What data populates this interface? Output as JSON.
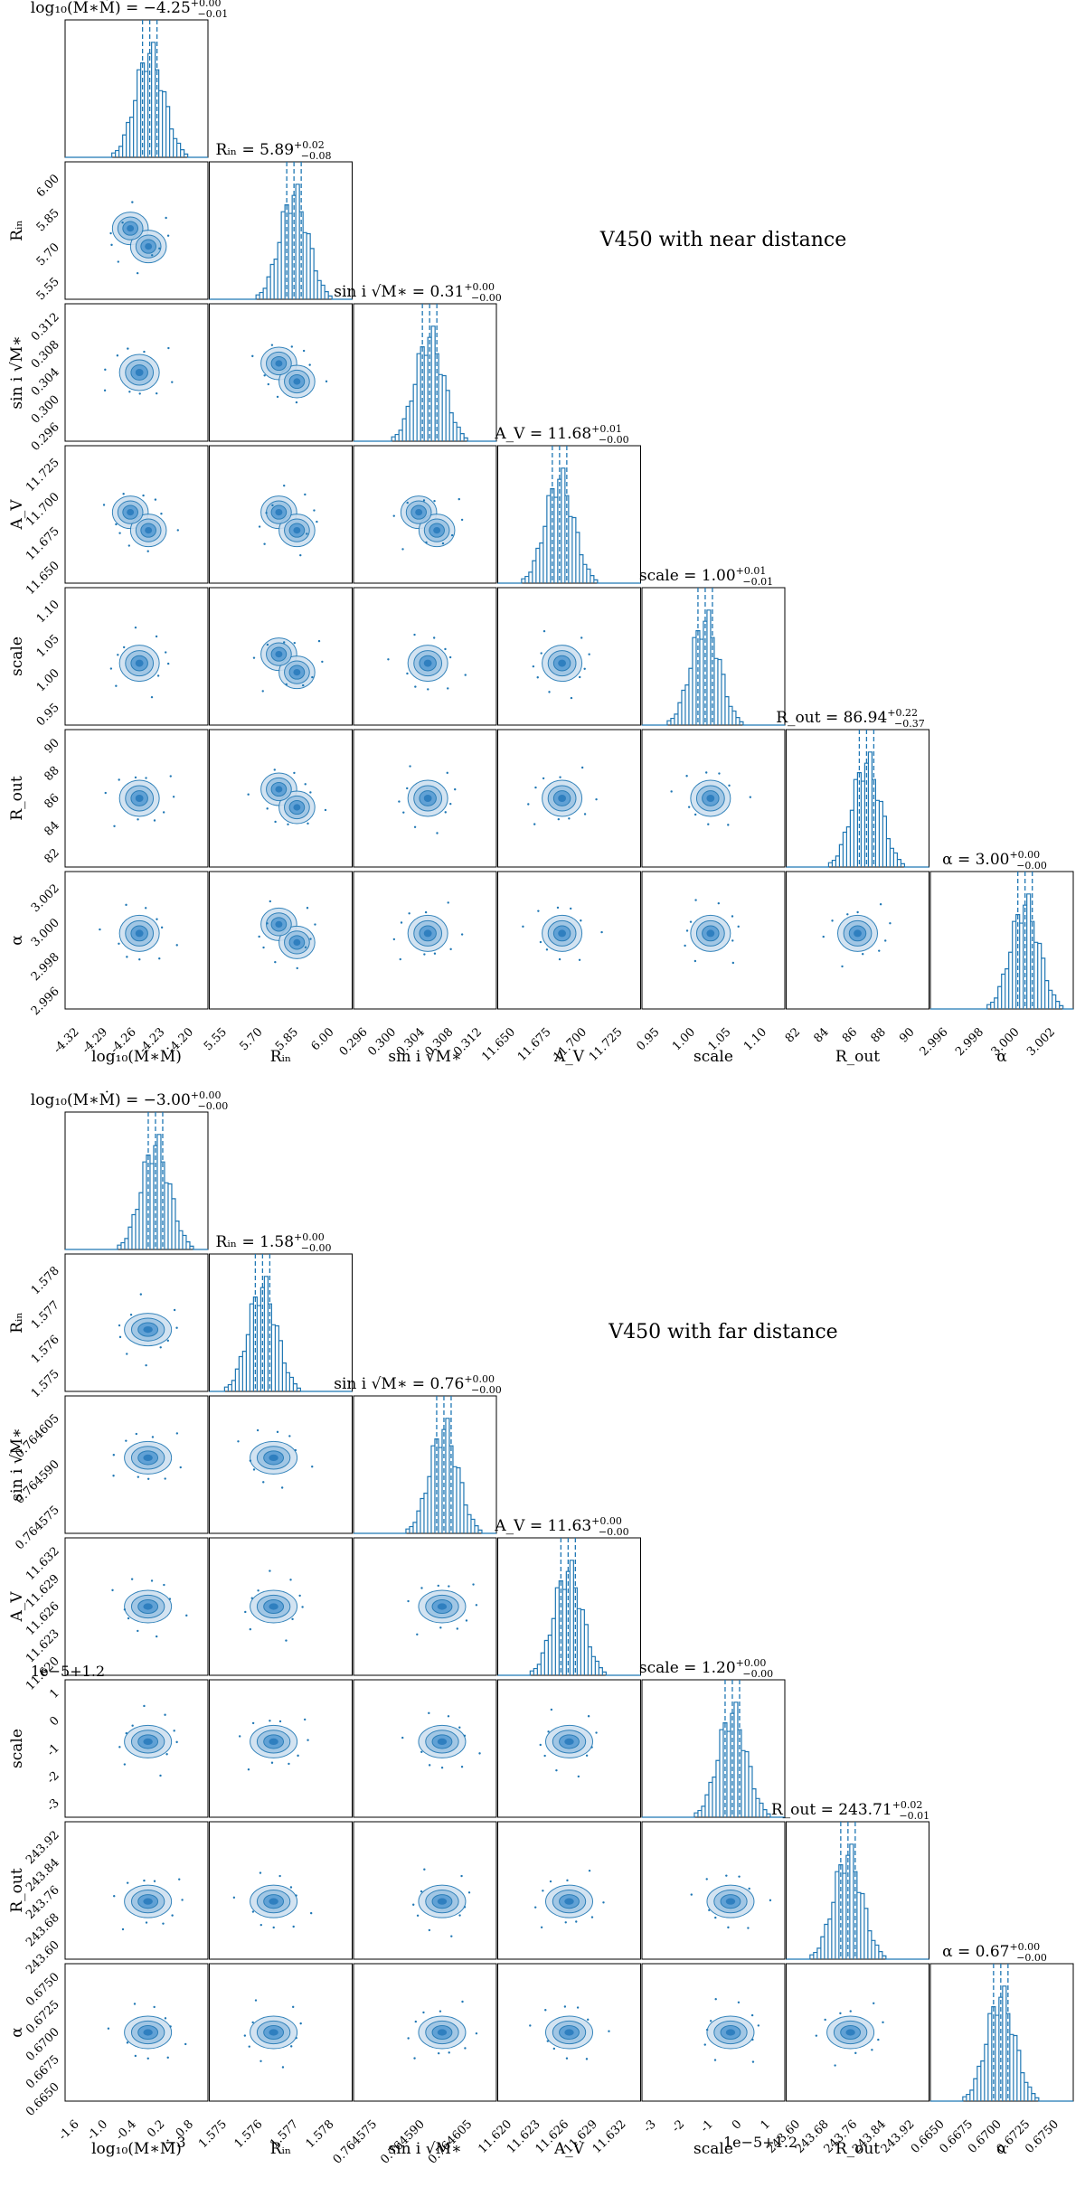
{
  "colors": {
    "accent": "#1f77b4",
    "fill": "#9cc3e3",
    "core": "#2f7fbf",
    "axis": "#000000"
  },
  "panels": [
    {
      "annotation": "V450 with near distance",
      "params": [
        {
          "title": "log₁₀(M∗Ṁ) = −4.25",
          "sup": "+0.00",
          "sub": "−0.01",
          "axis_label": "log₁₀(M∗Ṁ)"
        },
        {
          "title": "Rᵢₙ = 5.89",
          "sup": "+0.02",
          "sub": "−0.08",
          "axis_label": "Rᵢₙ"
        },
        {
          "title": "sin i √M∗ = 0.31",
          "sup": "+0.00",
          "sub": "−0.00",
          "axis_label": "sin i √M∗"
        },
        {
          "title": "A_V = 11.68",
          "sup": "+0.01",
          "sub": "−0.00",
          "axis_label": "A_V"
        },
        {
          "title": "scale = 1.00",
          "sup": "+0.01",
          "sub": "−0.01",
          "axis_label": "scale"
        },
        {
          "title": "R_out = 86.94",
          "sup": "+0.22",
          "sub": "−0.37",
          "axis_label": "R_out"
        },
        {
          "title": "α = 3.00",
          "sup": "+0.00",
          "sub": "−0.00",
          "axis_label": "α"
        }
      ],
      "ticks": [
        [
          "-4.32",
          "-4.29",
          "-4.26",
          "-4.23",
          "-4.20"
        ],
        [
          "5.55",
          "5.70",
          "5.85",
          "6.00"
        ],
        [
          "0.296",
          "0.300",
          "0.304",
          "0.308",
          "0.312"
        ],
        [
          "11.650",
          "11.675",
          "11.700",
          "11.725"
        ],
        [
          "0.95",
          "1.00",
          "1.05",
          "1.10"
        ],
        [
          "82",
          "84",
          "86",
          "88",
          "90"
        ],
        [
          "2.996",
          "2.998",
          "3.000",
          "3.002"
        ]
      ],
      "offset_labels": []
    },
    {
      "annotation": "V450 with far distance",
      "params": [
        {
          "title": "log₁₀(M∗Ṁ) = −3.00",
          "sup": "+0.00",
          "sub": "−0.00",
          "axis_label": "log₁₀(M∗Ṁ)"
        },
        {
          "title": "Rᵢₙ = 1.58",
          "sup": "+0.00",
          "sub": "−0.00",
          "axis_label": "Rᵢₙ"
        },
        {
          "title": "sin i √M∗ = 0.76",
          "sup": "+0.00",
          "sub": "−0.00",
          "axis_label": "sin i √M∗"
        },
        {
          "title": "A_V = 11.63",
          "sup": "+0.00",
          "sub": "−0.00",
          "axis_label": "A_V"
        },
        {
          "title": "scale = 1.20",
          "sup": "+0.00",
          "sub": "−0.00",
          "axis_label": "scale"
        },
        {
          "title": "R_out = 243.71",
          "sup": "+0.02",
          "sub": "−0.01",
          "axis_label": "R_out"
        },
        {
          "title": "α = 0.67",
          "sup": "+0.00",
          "sub": "−0.00",
          "axis_label": "α"
        }
      ],
      "ticks": [
        [
          "-1.6",
          "-1.0",
          "-0.4",
          "0.2",
          "0.8"
        ],
        [
          "1.575",
          "1.576",
          "1.577",
          "1.578"
        ],
        [
          "0.764575",
          "0.764590",
          "0.764605"
        ],
        [
          "11.620",
          "11.623",
          "11.626",
          "11.629",
          "11.632"
        ],
        [
          "-3",
          "-2",
          "-1",
          "0",
          "1"
        ],
        [
          "243.60",
          "243.68",
          "243.76",
          "243.84",
          "243.92"
        ],
        [
          "0.6650",
          "0.6675",
          "0.6700",
          "0.6725",
          "0.6750"
        ]
      ],
      "offset_labels": [
        "1e−5+1.2",
        "1e−5+1.2",
        "−3"
      ]
    }
  ],
  "chart_data": [
    {
      "type": "corner",
      "title": "V450 with near distance",
      "parameters": [
        "log10(M*Mdot)",
        "R_in",
        "sin i sqrt(M*)",
        "A_V",
        "scale",
        "R_out",
        "alpha"
      ],
      "medians": [
        -4.25,
        5.89,
        0.31,
        11.68,
        1.0,
        86.94,
        3.0
      ],
      "err_plus": [
        0.0,
        0.02,
        0.0,
        0.01,
        0.01,
        0.22,
        0.0
      ],
      "err_minus": [
        0.01,
        0.08,
        0.0,
        0.0,
        0.01,
        0.37,
        0.0
      ],
      "ranges": [
        [
          -4.33,
          -4.19
        ],
        [
          5.52,
          6.05
        ],
        [
          0.294,
          0.314
        ],
        [
          11.63,
          11.74
        ],
        [
          0.92,
          1.12
        ],
        [
          81.5,
          91.0
        ],
        [
          2.995,
          3.003
        ]
      ]
    },
    {
      "type": "corner",
      "title": "V450 with far distance",
      "parameters": [
        "log10(M*Mdot)",
        "R_in",
        "sin i sqrt(M*)",
        "A_V",
        "scale",
        "R_out",
        "alpha"
      ],
      "medians": [
        -3.0,
        1.58,
        0.76,
        11.63,
        1.2,
        243.71,
        0.67
      ],
      "err_plus": [
        0.0,
        0.0,
        0.0,
        0.0,
        0.0,
        0.02,
        0.0
      ],
      "err_minus": [
        0.0,
        0.0,
        0.0,
        0.0,
        0.0,
        0.01,
        0.0
      ],
      "ranges": [
        [
          -1.7,
          0.9
        ],
        [
          1.5745,
          1.5785
        ],
        [
          0.76457,
          0.76461
        ],
        [
          11.619,
          11.633
        ],
        [
          -3.1,
          1.3
        ],
        [
          243.58,
          243.94
        ],
        [
          0.6645,
          0.6755
        ]
      ]
    }
  ]
}
